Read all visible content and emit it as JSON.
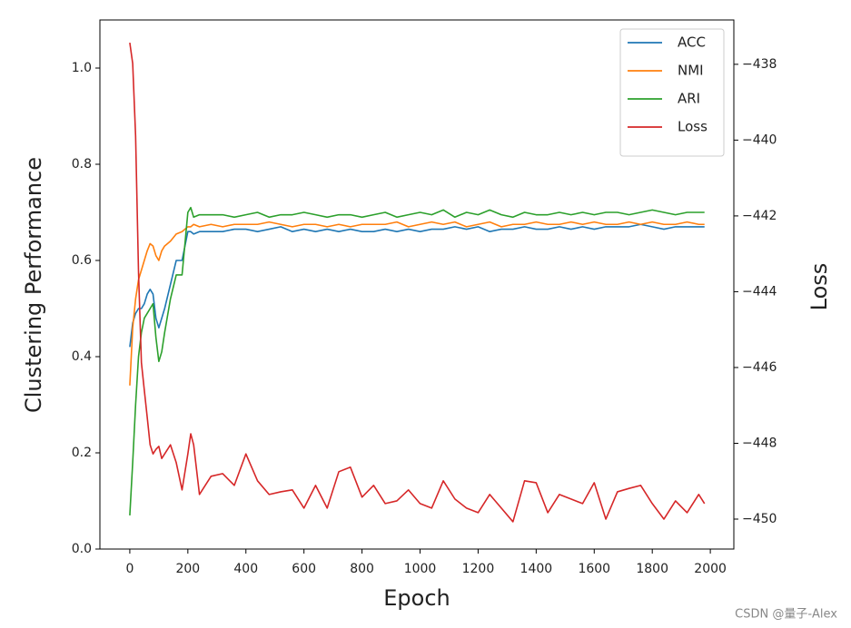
{
  "chart_data": {
    "type": "line",
    "xlabel": "Epoch",
    "ylabel": "Clustering Performance",
    "y2label": "Loss",
    "watermark": "CSDN @量子-Alex",
    "legend": "upper right",
    "grid": false,
    "x": [
      0,
      10,
      20,
      30,
      40,
      50,
      60,
      70,
      80,
      90,
      100,
      110,
      120,
      140,
      160,
      180,
      200,
      210,
      220,
      240,
      280,
      320,
      360,
      400,
      440,
      480,
      520,
      560,
      600,
      640,
      680,
      720,
      760,
      800,
      840,
      880,
      920,
      960,
      1000,
      1040,
      1080,
      1120,
      1160,
      1200,
      1240,
      1280,
      1320,
      1360,
      1400,
      1440,
      1480,
      1520,
      1560,
      1600,
      1640,
      1680,
      1720,
      1760,
      1800,
      1840,
      1880,
      1920,
      1960,
      1980
    ],
    "xlim": [
      -103,
      2081
    ],
    "xticks": [
      0,
      200,
      400,
      600,
      800,
      1000,
      1200,
      1400,
      1600,
      1800,
      2000
    ],
    "ylim": [
      0,
      1.1
    ],
    "yticks": [
      {
        "value": 0,
        "label": "0.0"
      },
      0.2,
      0.4,
      0.6,
      0.8,
      {
        "value": 1,
        "label": "1.0"
      }
    ],
    "y2lim": [
      -450.79,
      -436.83
    ],
    "y2ticks": [
      {
        "value": -450,
        "label": "−450"
      },
      {
        "value": -448,
        "label": "−448"
      },
      {
        "value": -446,
        "label": "−446"
      },
      {
        "value": -444,
        "label": "−444"
      },
      {
        "value": -442,
        "label": "−442"
      },
      {
        "value": -440,
        "label": "−440"
      },
      {
        "value": -438,
        "label": "−438"
      }
    ],
    "series": [
      {
        "name": "ACC",
        "color": "#1f77b4",
        "values": [
          0.42,
          0.47,
          0.49,
          0.5,
          0.5,
          0.51,
          0.53,
          0.54,
          0.53,
          0.48,
          0.46,
          0.48,
          0.5,
          0.55,
          0.6,
          0.6,
          0.66,
          0.66,
          0.655,
          0.66,
          0.66,
          0.66,
          0.665,
          0.665,
          0.66,
          0.665,
          0.67,
          0.66,
          0.665,
          0.66,
          0.665,
          0.66,
          0.665,
          0.66,
          0.66,
          0.665,
          0.66,
          0.665,
          0.66,
          0.665,
          0.665,
          0.67,
          0.665,
          0.67,
          0.66,
          0.665,
          0.665,
          0.67,
          0.665,
          0.665,
          0.67,
          0.665,
          0.67,
          0.665,
          0.67,
          0.67,
          0.67,
          0.675,
          0.67,
          0.665,
          0.67,
          0.67,
          0.67,
          0.67
        ]
      },
      {
        "name": "NMI",
        "color": "#ff7f0e",
        "values": [
          0.34,
          0.46,
          0.52,
          0.56,
          0.58,
          0.6,
          0.62,
          0.635,
          0.63,
          0.61,
          0.6,
          0.62,
          0.63,
          0.64,
          0.655,
          0.66,
          0.67,
          0.67,
          0.675,
          0.67,
          0.675,
          0.67,
          0.675,
          0.675,
          0.675,
          0.68,
          0.675,
          0.67,
          0.675,
          0.675,
          0.67,
          0.675,
          0.67,
          0.675,
          0.675,
          0.675,
          0.68,
          0.67,
          0.675,
          0.68,
          0.675,
          0.68,
          0.67,
          0.675,
          0.68,
          0.67,
          0.675,
          0.675,
          0.68,
          0.675,
          0.675,
          0.68,
          0.675,
          0.68,
          0.675,
          0.675,
          0.68,
          0.675,
          0.68,
          0.675,
          0.675,
          0.68,
          0.675,
          0.675
        ]
      },
      {
        "name": "ARI",
        "color": "#2ca02c",
        "values": [
          0.07,
          0.18,
          0.3,
          0.4,
          0.45,
          0.48,
          0.49,
          0.5,
          0.51,
          0.44,
          0.39,
          0.41,
          0.45,
          0.52,
          0.57,
          0.57,
          0.7,
          0.71,
          0.69,
          0.695,
          0.695,
          0.695,
          0.69,
          0.695,
          0.7,
          0.69,
          0.695,
          0.695,
          0.7,
          0.695,
          0.69,
          0.695,
          0.695,
          0.69,
          0.695,
          0.7,
          0.69,
          0.695,
          0.7,
          0.695,
          0.705,
          0.69,
          0.7,
          0.695,
          0.705,
          0.695,
          0.69,
          0.7,
          0.695,
          0.695,
          0.7,
          0.695,
          0.7,
          0.695,
          0.7,
          0.7,
          0.695,
          0.7,
          0.705,
          0.7,
          0.695,
          0.7,
          0.7,
          0.7
        ]
      },
      {
        "name": "Loss",
        "color": "#d62728",
        "axis": "y2",
        "values": [
          -437.43,
          -437.98,
          -439.89,
          -443.48,
          -445.87,
          -446.6,
          -447.31,
          -448.04,
          -448.28,
          -448.16,
          -448.08,
          -448.4,
          -448.28,
          -448.04,
          -448.51,
          -449.23,
          -448.28,
          -447.75,
          -448.04,
          -449.35,
          -448.87,
          -448.8,
          -449.11,
          -448.28,
          -448.99,
          -449.35,
          -449.28,
          -449.23,
          -449.71,
          -449.11,
          -449.71,
          -448.75,
          -448.63,
          -449.42,
          -449.11,
          -449.59,
          -449.52,
          -449.23,
          -449.59,
          -449.71,
          -448.99,
          -449.47,
          -449.71,
          -449.83,
          -449.35,
          -449.71,
          -450.07,
          -448.99,
          -449.04,
          -449.83,
          -449.35,
          -449.47,
          -449.59,
          -449.04,
          -450.0,
          -449.28,
          -449.19,
          -449.11,
          -449.59,
          -450.0,
          -449.52,
          -449.83,
          -449.35,
          -449.59
        ]
      }
    ]
  }
}
